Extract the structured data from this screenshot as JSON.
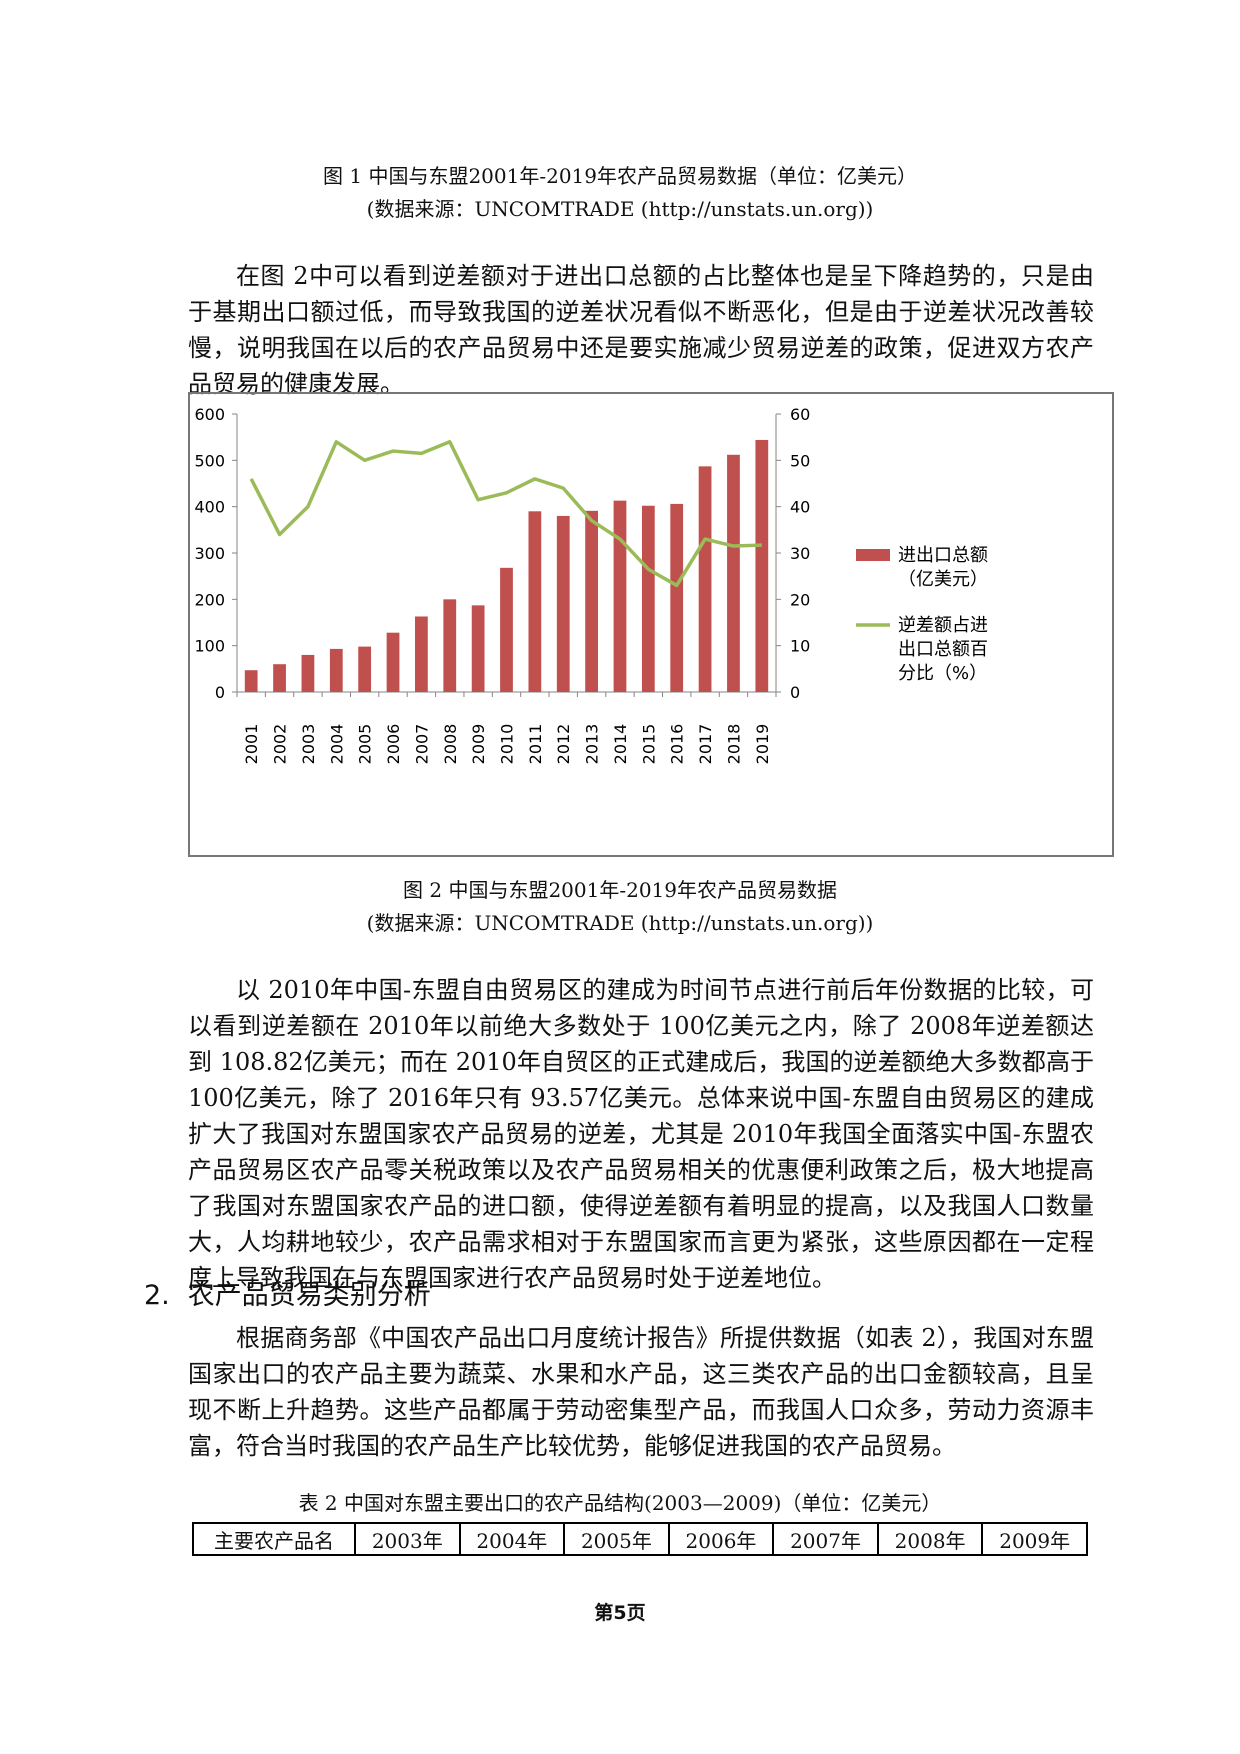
{
  "figure1": {
    "caption": "图 1 中国与东盟2001年-2019年农产品贸易数据（单位：亿美元）",
    "source": "(数据来源：UNCOMTRADE (http://unstats.un.org))"
  },
  "paragraph1": "在图 2中可以看到逆差额对于进出口总额的占比整体也是呈下降趋势的，只是由于基期出口额过低，而导致我国的逆差状况看似不断恶化，但是由于逆差状况改善较慢，说明我国在以后的农产品贸易中还是要实施减少贸易逆差的政策，促进双方农产品贸易的健康发展。",
  "figure2": {
    "caption": "图 2 中国与东盟2001年-2019年农产品贸易数据",
    "source": "(数据来源：UNCOMTRADE (http://unstats.un.org))"
  },
  "chart_data": {
    "type": "bar+line",
    "categories": [
      "2001",
      "2002",
      "2003",
      "2004",
      "2005",
      "2006",
      "2007",
      "2008",
      "2009",
      "2010",
      "2011",
      "2012",
      "2013",
      "2014",
      "2015",
      "2016",
      "2017",
      "2018",
      "2019"
    ],
    "series": [
      {
        "name": "进出口总额（亿美元）",
        "type": "bar",
        "axis": "left",
        "color": "#c0504d",
        "values": [
          47,
          60,
          80,
          93,
          98,
          128,
          163,
          200,
          187,
          268,
          390,
          380,
          391,
          413,
          402,
          406,
          487,
          512,
          544
        ]
      },
      {
        "name": "逆差额占进出口总额百分比（%）",
        "type": "line",
        "axis": "right",
        "color": "#9bbb59",
        "values": [
          46,
          34,
          40,
          54,
          50,
          52,
          51.5,
          54,
          41.5,
          43,
          46,
          44,
          37,
          33,
          26.5,
          23,
          33,
          31.5,
          31.7
        ]
      }
    ],
    "y_left": {
      "min": 0,
      "max": 600,
      "ticks": [
        0,
        100,
        200,
        300,
        400,
        500,
        600
      ]
    },
    "y_right": {
      "min": 0,
      "max": 60,
      "ticks": [
        0,
        10,
        20,
        30,
        40,
        50,
        60
      ]
    },
    "legend": {
      "position": "right",
      "bar_label_lines": [
        "进出口总额",
        "（亿美元）"
      ],
      "line_label_lines": [
        "逆差额占进",
        "出口总额百",
        "分比（%）"
      ]
    },
    "grid": false
  },
  "paragraph2": "以 2010年中国-东盟自由贸易区的建成为时间节点进行前后年份数据的比较，可以看到逆差额在 2010年以前绝大多数处于 100亿美元之内，除了 2008年逆差额达到 108.82亿美元；而在 2010年自贸区的正式建成后，我国的逆差额绝大多数都高于 100亿美元，除了 2016年只有 93.57亿美元。总体来说中国-东盟自由贸易区的建成扩大了我国对东盟国家农产品贸易的逆差，尤其是 2010年我国全面落实中国-东盟农产品贸易区农产品零关税政策以及农产品贸易相关的优惠便利政策之后，极大地提高了我国对东盟国家农产品的进口额，使得逆差额有着明显的提高，以及我国人口数量大，人均耕地较少，农产品需求相对于东盟国家而言更为紧张，这些原因都在一定程度上导致我国在与东盟国家进行农产品贸易时处于逆差地位。",
  "section2": {
    "number": "2.",
    "title": "农产品贸易类别分析"
  },
  "paragraph3": "根据商务部《中国农产品出口月度统计报告》所提供数据（如表 2），我国对东盟国家出口的农产品主要为蔬菜、水果和水产品，这三类农产品的出口金额较高，且呈现不断上升趋势。这些产品都属于劳动密集型产品，而我国人口众多，劳动力资源丰富，符合当时我国的农产品生产比较优势，能够促进我国的农产品贸易。",
  "table2": {
    "caption": "表 2 中国对东盟主要出口的农产品结构(2003—2009)（单位：亿美元）",
    "headers": [
      "主要农产品名",
      "2003年",
      "2004年",
      "2005年",
      "2006年",
      "2007年",
      "2008年",
      "2009年"
    ]
  },
  "footer": {
    "page": "第5页"
  }
}
